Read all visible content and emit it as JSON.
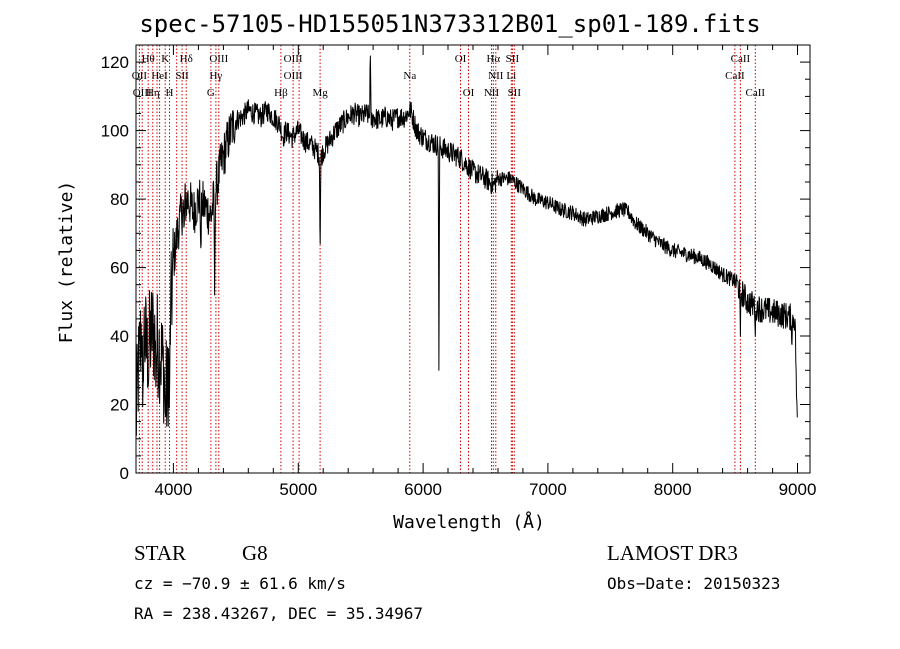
{
  "title": "spec-57105-HD155051N373312B01_sp01-189.fits",
  "info": {
    "object_class": "STAR",
    "subclass": "G8",
    "survey": "LAMOST DR3",
    "redshift_text": "cz = −70.9 ± 61.6 km/s",
    "obs_date_text": "Obs−Date: 20150323",
    "coords_text": "RA = 238.43267, DEC =  35.34967"
  },
  "chart_data": {
    "type": "line",
    "title": "spec-57105-HD155051N373312B01_sp01-189.fits",
    "xlabel": "Wavelength (Å)",
    "ylabel": "Flux (relative)",
    "xlim": [
      3700,
      9100
    ],
    "ylim": [
      0,
      125
    ],
    "xticks": [
      4000,
      5000,
      6000,
      7000,
      8000,
      9000
    ],
    "yticks": [
      0,
      20,
      40,
      60,
      80,
      100,
      120
    ],
    "series": [
      {
        "name": "flux",
        "anchors": [
          [
            3700,
            15
          ],
          [
            3720,
            30
          ],
          [
            3750,
            45
          ],
          [
            3790,
            35
          ],
          [
            3830,
            42
          ],
          [
            3870,
            38
          ],
          [
            3900,
            35
          ],
          [
            3930,
            28
          ],
          [
            3950,
            22
          ],
          [
            3970,
            40
          ],
          [
            4000,
            62
          ],
          [
            4040,
            72
          ],
          [
            4080,
            78
          ],
          [
            4120,
            80
          ],
          [
            4160,
            76
          ],
          [
            4200,
            80
          ],
          [
            4250,
            78
          ],
          [
            4300,
            75
          ],
          [
            4340,
            83
          ],
          [
            4380,
            90
          ],
          [
            4420,
            95
          ],
          [
            4460,
            100
          ],
          [
            4500,
            103
          ],
          [
            4550,
            104
          ],
          [
            4600,
            106
          ],
          [
            4650,
            105
          ],
          [
            4700,
            104
          ],
          [
            4750,
            106
          ],
          [
            4800,
            104
          ],
          [
            4850,
            102
          ],
          [
            4880,
            98
          ],
          [
            4900,
            100
          ],
          [
            4950,
            98
          ],
          [
            5000,
            100
          ],
          [
            5050,
            97
          ],
          [
            5100,
            96
          ],
          [
            5150,
            94
          ],
          [
            5180,
            92
          ],
          [
            5200,
            94
          ],
          [
            5250,
            97
          ],
          [
            5300,
            100
          ],
          [
            5350,
            102
          ],
          [
            5400,
            104
          ],
          [
            5450,
            105
          ],
          [
            5500,
            104
          ],
          [
            5550,
            105
          ],
          [
            5580,
            103
          ],
          [
            5600,
            104
          ],
          [
            5650,
            103
          ],
          [
            5700,
            104
          ],
          [
            5750,
            103
          ],
          [
            5800,
            104
          ],
          [
            5850,
            104
          ],
          [
            5900,
            106
          ],
          [
            5950,
            100
          ],
          [
            6000,
            98
          ],
          [
            6050,
            97
          ],
          [
            6100,
            96
          ],
          [
            6150,
            95
          ],
          [
            6200,
            94
          ],
          [
            6250,
            93
          ],
          [
            6300,
            92
          ],
          [
            6350,
            90
          ],
          [
            6400,
            88
          ],
          [
            6450,
            87
          ],
          [
            6500,
            86
          ],
          [
            6563,
            84
          ],
          [
            6600,
            86
          ],
          [
            6700,
            86
          ],
          [
            6800,
            83
          ],
          [
            6900,
            80
          ],
          [
            7000,
            79
          ],
          [
            7100,
            77
          ],
          [
            7200,
            76
          ],
          [
            7300,
            74
          ],
          [
            7400,
            75
          ],
          [
            7500,
            76
          ],
          [
            7600,
            77
          ],
          [
            7650,
            76
          ],
          [
            7700,
            73
          ],
          [
            7800,
            70
          ],
          [
            7900,
            67
          ],
          [
            8000,
            65
          ],
          [
            8100,
            64
          ],
          [
            8200,
            63
          ],
          [
            8300,
            61
          ],
          [
            8400,
            58
          ],
          [
            8500,
            56
          ],
          [
            8550,
            53
          ],
          [
            8600,
            50
          ],
          [
            8700,
            48
          ],
          [
            8800,
            47
          ],
          [
            8900,
            46
          ],
          [
            8980,
            45
          ],
          [
            9000,
            10
          ]
        ],
        "spikes": [
          [
            5577,
            125
          ],
          [
            4085,
            70
          ],
          [
            4220,
            62
          ],
          [
            4330,
            52
          ],
          [
            5175,
            62
          ],
          [
            6127,
            30
          ],
          [
            3935,
            15
          ],
          [
            3968,
            16
          ],
          [
            3755,
            12
          ],
          [
            3800,
            25
          ],
          [
            3860,
            24
          ],
          [
            8542,
            40
          ],
          [
            8662,
            40
          ],
          [
            8955,
            36
          ]
        ]
      }
    ],
    "lines": {
      "wavelengths": [
        3727,
        3750,
        3798,
        3835,
        3868,
        3889,
        3934,
        3968,
        4026,
        4069,
        4102,
        4300,
        4340,
        4363,
        4861,
        4959,
        5007,
        5175,
        5894,
        6300,
        6364,
        6548,
        6563,
        6583,
        6707,
        6716,
        6731,
        8498,
        8542,
        8662
      ],
      "labels": [
        {
          "text": "Hθ",
          "wl": 3798,
          "row": 0
        },
        {
          "text": "K",
          "wl": 3934,
          "row": 0
        },
        {
          "text": "Hδ",
          "wl": 4102,
          "row": 0
        },
        {
          "text": "OIII",
          "wl": 4363,
          "row": 0
        },
        {
          "text": "OIII",
          "wl": 4959,
          "row": 0
        },
        {
          "text": "OI",
          "wl": 6300,
          "row": 0
        },
        {
          "text": "Hα",
          "wl": 6563,
          "row": 0
        },
        {
          "text": "SII",
          "wl": 6716,
          "row": 0
        },
        {
          "text": "CaII",
          "wl": 8542,
          "row": 0
        },
        {
          "text": "OII",
          "wl": 3727,
          "row": 1
        },
        {
          "text": "HeI",
          "wl": 3889,
          "row": 1
        },
        {
          "text": "SII",
          "wl": 4069,
          "row": 1
        },
        {
          "text": "Hγ",
          "wl": 4340,
          "row": 1
        },
        {
          "text": "OIII",
          "wl": 4959,
          "row": 1
        },
        {
          "text": "Na",
          "wl": 5894,
          "row": 1
        },
        {
          "text": "NII",
          "wl": 6583,
          "row": 1
        },
        {
          "text": "Li",
          "wl": 6707,
          "row": 1
        },
        {
          "text": "CaII",
          "wl": 8498,
          "row": 1
        },
        {
          "text": "OIII",
          "wl": 3750,
          "row": 2
        },
        {
          "text": "Hη",
          "wl": 3835,
          "row": 2
        },
        {
          "text": "H",
          "wl": 3968,
          "row": 2
        },
        {
          "text": "G",
          "wl": 4300,
          "row": 2
        },
        {
          "text": "Hβ",
          "wl": 4861,
          "row": 2
        },
        {
          "text": "Mg",
          "wl": 5175,
          "row": 2
        },
        {
          "text": "OI",
          "wl": 6364,
          "row": 2
        },
        {
          "text": "NII",
          "wl": 6548,
          "row": 2
        },
        {
          "text": "SII",
          "wl": 6731,
          "row": 2
        },
        {
          "text": "CaII",
          "wl": 8662,
          "row": 2
        }
      ]
    }
  }
}
